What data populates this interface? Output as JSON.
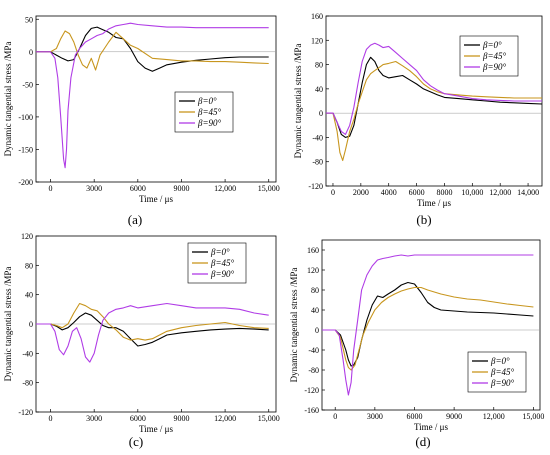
{
  "chart_data": [
    {
      "panel": "(a)",
      "type": "line",
      "xlabel": "Time / μs",
      "ylabel": "Dynamic tangential stress /MPa",
      "xlim": [
        -1000,
        15500
      ],
      "ylim": [
        -200,
        55
      ],
      "xticks": [
        0,
        3000,
        6000,
        9000,
        12000,
        15000
      ],
      "xtick_labels": [
        "0",
        "3000",
        "6000",
        "9000",
        "12,000",
        "15,000"
      ],
      "yticks": [
        -200,
        -150,
        -100,
        -50,
        0,
        50
      ],
      "ytick_labels": [
        "-200",
        "-150",
        "-100",
        "-50",
        "0",
        "50"
      ],
      "legend": [
        "β=0°",
        "β=45°",
        "β=90°"
      ],
      "series": [
        {
          "name": "β=0°",
          "color": "#000000",
          "x": [
            -1000,
            0,
            400,
            800,
            1200,
            1600,
            2000,
            2400,
            2800,
            3200,
            3600,
            4000,
            4500,
            5000,
            5500,
            6000,
            6500,
            7000,
            7500,
            8000,
            9000,
            10000,
            11000,
            12000,
            13000,
            14000,
            15000
          ],
          "y": [
            0,
            0,
            -5,
            -10,
            -14,
            -12,
            5,
            25,
            36,
            38,
            34,
            30,
            22,
            20,
            5,
            -15,
            -25,
            -30,
            -25,
            -20,
            -16,
            -13,
            -11,
            -9,
            -8,
            -8,
            -8
          ]
        },
        {
          "name": "β=45°",
          "color": "#C8961E",
          "x": [
            -1000,
            0,
            400,
            700,
            1000,
            1300,
            1600,
            1900,
            2200,
            2500,
            2800,
            3100,
            3400,
            3700,
            4000,
            4500,
            5000,
            5500,
            6000,
            7000,
            8000,
            9000,
            10000,
            11000,
            12000,
            13000,
            14000,
            15000
          ],
          "y": [
            0,
            0,
            5,
            20,
            32,
            28,
            15,
            -5,
            -20,
            -25,
            -10,
            -28,
            -5,
            5,
            15,
            30,
            20,
            10,
            5,
            -10,
            -12,
            -14,
            -14,
            -15,
            -15,
            -16,
            -17,
            -18
          ]
        },
        {
          "name": "β=90°",
          "color": "#B03CE6",
          "x": [
            -1000,
            0,
            300,
            500,
            700,
            900,
            1000,
            1100,
            1200,
            1400,
            1700,
            2000,
            2400,
            2800,
            3200,
            3600,
            4000,
            4500,
            5000,
            5500,
            6000,
            7000,
            8000,
            9000,
            10000,
            11000,
            12000,
            13000,
            14000,
            15000
          ],
          "y": [
            0,
            0,
            -10,
            -40,
            -100,
            -165,
            -178,
            -150,
            -90,
            -40,
            -5,
            5,
            15,
            20,
            25,
            28,
            35,
            40,
            42,
            44,
            42,
            40,
            38,
            38,
            37,
            37,
            37,
            37,
            37,
            37
          ]
        }
      ]
    },
    {
      "panel": "(b)",
      "type": "line",
      "xlabel": "Time / μs",
      "ylabel": "Dynamic tangential stress /MPa",
      "xlim": [
        -500,
        15000
      ],
      "ylim": [
        -120,
        160
      ],
      "xticks": [
        0,
        2000,
        4000,
        6000,
        8000,
        10000,
        12000,
        14000
      ],
      "xtick_labels": [
        "0",
        "2000",
        "4000",
        "6000",
        "8000",
        "10,000",
        "12,000",
        "14,000"
      ],
      "yticks": [
        -120,
        -80,
        -40,
        0,
        40,
        80,
        120,
        160
      ],
      "ytick_labels": [
        "-120",
        "-80",
        "-40",
        "0",
        "40",
        "80",
        "120",
        "160"
      ],
      "legend": [
        "β=0°",
        "β=45°",
        "β=90°"
      ],
      "series": [
        {
          "name": "β=0°",
          "color": "#000000",
          "x": [
            -500,
            0,
            300,
            600,
            900,
            1200,
            1500,
            1800,
            2100,
            2400,
            2700,
            3000,
            3300,
            3600,
            4000,
            4500,
            5000,
            5500,
            6000,
            6500,
            7000,
            7500,
            8000,
            9000,
            10000,
            11000,
            12000,
            13000,
            14000,
            15000
          ],
          "y": [
            0,
            0,
            -15,
            -35,
            -40,
            -38,
            -20,
            15,
            50,
            80,
            92,
            85,
            70,
            62,
            58,
            60,
            62,
            55,
            48,
            40,
            35,
            30,
            26,
            24,
            22,
            20,
            18,
            17,
            16,
            15
          ]
        },
        {
          "name": "β=45°",
          "color": "#C8961E",
          "x": [
            -500,
            0,
            300,
            500,
            700,
            900,
            1200,
            1500,
            1800,
            2100,
            2400,
            2700,
            3000,
            3300,
            3600,
            4000,
            4500,
            5000,
            5500,
            6000,
            6500,
            7000,
            7500,
            8000,
            9000,
            10000,
            11000,
            12000,
            13000,
            14000,
            15000
          ],
          "y": [
            0,
            0,
            -30,
            -65,
            -78,
            -60,
            -30,
            -10,
            15,
            35,
            55,
            65,
            70,
            75,
            80,
            82,
            85,
            78,
            70,
            60,
            48,
            40,
            35,
            32,
            30,
            28,
            27,
            26,
            25,
            25,
            25
          ]
        },
        {
          "name": "β=90°",
          "color": "#B03CE6",
          "x": [
            -500,
            0,
            300,
            600,
            900,
            1200,
            1500,
            1800,
            2100,
            2400,
            2700,
            3000,
            3300,
            3600,
            4000,
            4500,
            5000,
            5500,
            6000,
            6500,
            7000,
            7500,
            8000,
            9000,
            10000,
            11000,
            12000,
            13000,
            14000,
            15000
          ],
          "y": [
            0,
            0,
            -15,
            -30,
            -35,
            -20,
            10,
            50,
            85,
            105,
            112,
            115,
            112,
            108,
            110,
            100,
            90,
            80,
            70,
            55,
            45,
            38,
            32,
            28,
            24,
            22,
            21,
            20,
            20,
            20
          ]
        }
      ]
    },
    {
      "panel": "(c)",
      "type": "line",
      "xlabel": "Time / μs",
      "ylabel": "Dynamic tangential stress /MPa",
      "xlim": [
        -1000,
        15500
      ],
      "ylim": [
        -120,
        120
      ],
      "xticks": [
        0,
        3000,
        6000,
        9000,
        12000,
        15000
      ],
      "xtick_labels": [
        "0",
        "3000",
        "6000",
        "9000",
        "12,000",
        "15,000"
      ],
      "yticks": [
        -120,
        -80,
        -40,
        0,
        40,
        80,
        120
      ],
      "ytick_labels": [
        "-120",
        "-80",
        "-40",
        "0",
        "40",
        "80",
        "120"
      ],
      "legend": [
        "β=0°",
        "β=45°",
        "β=90°"
      ],
      "series": [
        {
          "name": "β=0°",
          "color": "#000000",
          "x": [
            -1000,
            0,
            400,
            800,
            1200,
            1600,
            2000,
            2400,
            2800,
            3200,
            3600,
            4000,
            4500,
            5000,
            5500,
            6000,
            6500,
            7000,
            7500,
            8000,
            9000,
            10000,
            11000,
            12000,
            13000,
            14000,
            15000
          ],
          "y": [
            0,
            0,
            -3,
            -8,
            -5,
            2,
            10,
            15,
            12,
            5,
            -2,
            -5,
            -5,
            -10,
            -20,
            -30,
            -28,
            -25,
            -20,
            -15,
            -12,
            -10,
            -8,
            -7,
            -6,
            -7,
            -8
          ]
        },
        {
          "name": "β=45°",
          "color": "#C8961E",
          "x": [
            -1000,
            0,
            400,
            800,
            1200,
            1600,
            2000,
            2400,
            2800,
            3200,
            3600,
            4000,
            4500,
            5000,
            5500,
            6000,
            6500,
            7000,
            7500,
            8000,
            9000,
            10000,
            11000,
            12000,
            13000,
            14000,
            15000
          ],
          "y": [
            0,
            0,
            -2,
            -5,
            0,
            15,
            28,
            25,
            20,
            18,
            10,
            0,
            -8,
            -18,
            -22,
            -20,
            -22,
            -20,
            -15,
            -10,
            -5,
            -2,
            0,
            2,
            -2,
            -5,
            -6
          ]
        },
        {
          "name": "β=90°",
          "color": "#B03CE6",
          "x": [
            -1000,
            0,
            300,
            600,
            900,
            1200,
            1500,
            1800,
            2100,
            2400,
            2700,
            3000,
            3300,
            3600,
            4000,
            4500,
            5000,
            5500,
            6000,
            7000,
            8000,
            9000,
            10000,
            11000,
            12000,
            13000,
            14000,
            15000
          ],
          "y": [
            0,
            0,
            -10,
            -35,
            -42,
            -30,
            -10,
            -5,
            -20,
            -45,
            -52,
            -40,
            -15,
            5,
            15,
            20,
            22,
            25,
            22,
            25,
            28,
            25,
            22,
            22,
            22,
            20,
            15,
            12
          ]
        }
      ]
    },
    {
      "panel": "(d)",
      "type": "line",
      "xlabel": "Time / μs",
      "ylabel": "Dynamic tangential stress /MPa",
      "xlim": [
        -1000,
        15500
      ],
      "ylim": [
        -160,
        180
      ],
      "xticks": [
        0,
        3000,
        6000,
        9000,
        12000,
        15000
      ],
      "xtick_labels": [
        "0",
        "3000",
        "6000",
        "9000",
        "12,000",
        "15,000"
      ],
      "yticks": [
        -160,
        -120,
        -80,
        -40,
        0,
        40,
        80,
        120,
        160
      ],
      "ytick_labels": [
        "-160",
        "-120",
        "-80",
        "-40",
        "0",
        "40",
        "80",
        "120",
        "160"
      ],
      "legend": [
        "β=0°",
        "β=45°",
        "β=90°"
      ],
      "series": [
        {
          "name": "β=0°",
          "color": "#000000",
          "x": [
            -1000,
            0,
            400,
            800,
            1000,
            1200,
            1400,
            1700,
            2000,
            2400,
            2800,
            3200,
            3600,
            4000,
            4500,
            5000,
            5500,
            6000,
            6500,
            7000,
            7500,
            8000,
            9000,
            10000,
            11000,
            12000,
            13000,
            14000,
            15000
          ],
          "y": [
            0,
            0,
            -10,
            -40,
            -60,
            -72,
            -70,
            -55,
            -20,
            20,
            50,
            68,
            65,
            72,
            80,
            90,
            95,
            92,
            75,
            55,
            45,
            40,
            38,
            36,
            35,
            34,
            32,
            30,
            28
          ]
        },
        {
          "name": "β=45°",
          "color": "#C8961E",
          "x": [
            -1000,
            0,
            400,
            800,
            1000,
            1200,
            1500,
            1800,
            2100,
            2500,
            3000,
            3500,
            4000,
            4500,
            5000,
            5500,
            6000,
            6500,
            7000,
            8000,
            9000,
            10000,
            11000,
            12000,
            13000,
            14000,
            15000
          ],
          "y": [
            0,
            0,
            -15,
            -60,
            -75,
            -80,
            -70,
            -40,
            -10,
            15,
            40,
            55,
            65,
            72,
            78,
            82,
            85,
            85,
            80,
            72,
            66,
            62,
            60,
            56,
            52,
            49,
            46
          ]
        },
        {
          "name": "β=90°",
          "color": "#B03CE6",
          "x": [
            -1000,
            0,
            300,
            600,
            800,
            1000,
            1200,
            1400,
            1700,
            2000,
            2400,
            2800,
            3200,
            3600,
            4000,
            4500,
            5000,
            5500,
            6000,
            7000,
            8000,
            9000,
            10000,
            11000,
            12000,
            13000,
            14000,
            15000
          ],
          "y": [
            0,
            0,
            -10,
            -60,
            -100,
            -130,
            -105,
            -40,
            20,
            80,
            110,
            128,
            140,
            143,
            145,
            148,
            150,
            148,
            150,
            150,
            150,
            150,
            150,
            150,
            150,
            150,
            150,
            150
          ]
        }
      ]
    }
  ]
}
